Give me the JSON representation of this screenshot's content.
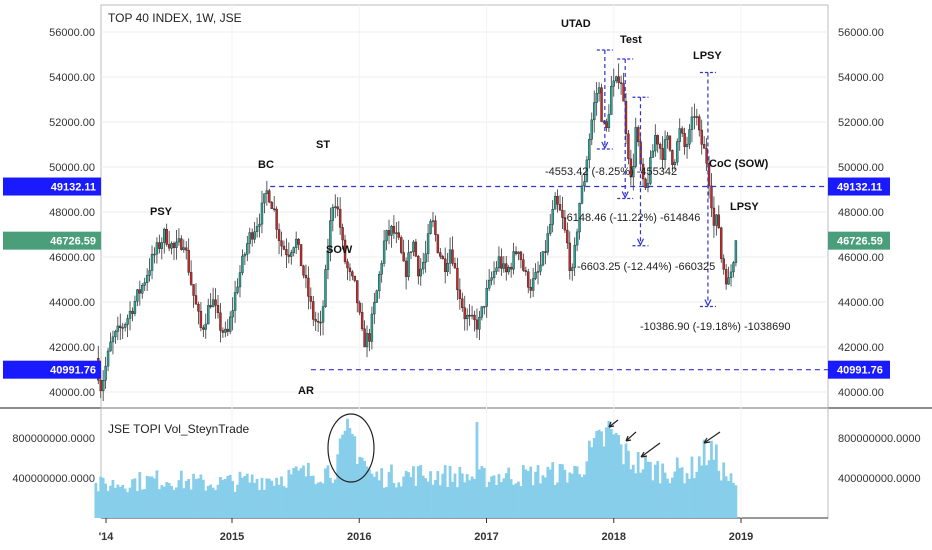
{
  "chart_data": [
    {
      "type": "candlestick",
      "title": "TOP 40 INDEX, 1W, JSE",
      "ylim": [
        39500,
        57200
      ],
      "y_ticks": [
        "56000.00",
        "54000.00",
        "52000.00",
        "50000.00",
        "48000.00",
        "46000.00",
        "44000.00",
        "42000.00",
        "40000.00"
      ],
      "x_ticks": [
        "'14",
        "2015",
        "2016",
        "2017",
        "2018",
        "2019"
      ],
      "colors": {
        "up": "#26a69a",
        "down": "#c62828",
        "level_line": "#3333cc",
        "blue_tag": "#1a1aff",
        "green_tag": "#4b9e7a"
      },
      "level_lines": [
        {
          "value": 49132.11,
          "label": "49132.11"
        },
        {
          "value": 40991.76,
          "label": "40991.76"
        }
      ],
      "last_price": {
        "value": 46726.59,
        "label": "46726.59"
      },
      "annotations": [
        "PSY",
        "BC",
        "ST",
        "SOW",
        "AR",
        "UTAD",
        "Test",
        "LPSY",
        "CoC (SOW)",
        "LPSY"
      ],
      "measurements": [
        "-4553.42 (-8.25%) -455342",
        "-6148.46 (-11.22%) -614846",
        "-6603.25 (-12.44%) -660325",
        "-10386.90 (-19.18%) -1038690"
      ],
      "price_path": [
        {
          "t": 2013.93,
          "v": 41500
        },
        {
          "t": 2013.97,
          "v": 40200
        },
        {
          "t": 2014.05,
          "v": 42200
        },
        {
          "t": 2014.17,
          "v": 43200
        },
        {
          "t": 2014.3,
          "v": 44800
        },
        {
          "t": 2014.38,
          "v": 46000
        },
        {
          "t": 2014.47,
          "v": 47000
        },
        {
          "t": 2014.55,
          "v": 46300
        },
        {
          "t": 2014.62,
          "v": 46800
        },
        {
          "t": 2014.69,
          "v": 44500
        },
        {
          "t": 2014.76,
          "v": 42700
        },
        {
          "t": 2014.84,
          "v": 44200
        },
        {
          "t": 2014.9,
          "v": 43000
        },
        {
          "t": 2014.96,
          "v": 42400
        },
        {
          "t": 2015.04,
          "v": 44800
        },
        {
          "t": 2015.13,
          "v": 46800
        },
        {
          "t": 2015.22,
          "v": 47800
        },
        {
          "t": 2015.28,
          "v": 49000
        },
        {
          "t": 2015.33,
          "v": 48100
        },
        {
          "t": 2015.38,
          "v": 46600
        },
        {
          "t": 2015.44,
          "v": 46200
        },
        {
          "t": 2015.5,
          "v": 46800
        },
        {
          "t": 2015.58,
          "v": 44800
        },
        {
          "t": 2015.64,
          "v": 43300
        },
        {
          "t": 2015.7,
          "v": 42800
        },
        {
          "t": 2015.76,
          "v": 46800
        },
        {
          "t": 2015.8,
          "v": 48800
        },
        {
          "t": 2015.84,
          "v": 47800
        },
        {
          "t": 2015.88,
          "v": 46000
        },
        {
          "t": 2015.92,
          "v": 45200
        },
        {
          "t": 2015.97,
          "v": 44600
        },
        {
          "t": 2016.03,
          "v": 42200
        },
        {
          "t": 2016.08,
          "v": 42500
        },
        {
          "t": 2016.14,
          "v": 44500
        },
        {
          "t": 2016.2,
          "v": 46800
        },
        {
          "t": 2016.26,
          "v": 47200
        },
        {
          "t": 2016.31,
          "v": 46600
        },
        {
          "t": 2016.36,
          "v": 45200
        },
        {
          "t": 2016.42,
          "v": 46800
        },
        {
          "t": 2016.47,
          "v": 45300
        },
        {
          "t": 2016.52,
          "v": 46000
        },
        {
          "t": 2016.57,
          "v": 47700
        },
        {
          "t": 2016.62,
          "v": 46400
        },
        {
          "t": 2016.67,
          "v": 45600
        },
        {
          "t": 2016.72,
          "v": 46500
        },
        {
          "t": 2016.77,
          "v": 44800
        },
        {
          "t": 2016.83,
          "v": 43400
        },
        {
          "t": 2016.88,
          "v": 43100
        },
        {
          "t": 2016.94,
          "v": 43000
        },
        {
          "t": 2016.99,
          "v": 44200
        },
        {
          "t": 2017.05,
          "v": 45200
        },
        {
          "t": 2017.1,
          "v": 45900
        },
        {
          "t": 2017.15,
          "v": 45200
        },
        {
          "t": 2017.2,
          "v": 45800
        },
        {
          "t": 2017.25,
          "v": 46500
        },
        {
          "t": 2017.3,
          "v": 45200
        },
        {
          "t": 2017.35,
          "v": 44700
        },
        {
          "t": 2017.4,
          "v": 45200
        },
        {
          "t": 2017.45,
          "v": 46000
        },
        {
          "t": 2017.5,
          "v": 47400
        },
        {
          "t": 2017.54,
          "v": 48400
        },
        {
          "t": 2017.59,
          "v": 47800
        },
        {
          "t": 2017.64,
          "v": 46400
        },
        {
          "t": 2017.67,
          "v": 45000
        },
        {
          "t": 2017.7,
          "v": 46600
        },
        {
          "t": 2017.73,
          "v": 48400
        },
        {
          "t": 2017.77,
          "v": 49500
        },
        {
          "t": 2017.8,
          "v": 51000
        },
        {
          "t": 2017.84,
          "v": 52600
        },
        {
          "t": 2017.88,
          "v": 53700
        },
        {
          "t": 2017.91,
          "v": 52000
        },
        {
          "t": 2017.94,
          "v": 51500
        },
        {
          "t": 2017.98,
          "v": 53500
        },
        {
          "t": 2018.02,
          "v": 53700
        },
        {
          "t": 2018.05,
          "v": 54300
        },
        {
          "t": 2018.08,
          "v": 52600
        },
        {
          "t": 2018.11,
          "v": 51000
        },
        {
          "t": 2018.14,
          "v": 49000
        },
        {
          "t": 2018.17,
          "v": 51800
        },
        {
          "t": 2018.2,
          "v": 50500
        },
        {
          "t": 2018.24,
          "v": 48700
        },
        {
          "t": 2018.28,
          "v": 49800
        },
        {
          "t": 2018.33,
          "v": 51500
        },
        {
          "t": 2018.38,
          "v": 50600
        },
        {
          "t": 2018.42,
          "v": 51200
        },
        {
          "t": 2018.47,
          "v": 50200
        },
        {
          "t": 2018.52,
          "v": 51600
        },
        {
          "t": 2018.56,
          "v": 50800
        },
        {
          "t": 2018.6,
          "v": 51500
        },
        {
          "t": 2018.64,
          "v": 52600
        },
        {
          "t": 2018.67,
          "v": 51400
        },
        {
          "t": 2018.7,
          "v": 50900
        },
        {
          "t": 2018.73,
          "v": 50300
        },
        {
          "t": 2018.76,
          "v": 49000
        },
        {
          "t": 2018.79,
          "v": 47200
        },
        {
          "t": 2018.82,
          "v": 47900
        },
        {
          "t": 2018.84,
          "v": 46100
        },
        {
          "t": 2018.87,
          "v": 45400
        },
        {
          "t": 2018.9,
          "v": 44800
        },
        {
          "t": 2018.93,
          "v": 45600
        },
        {
          "t": 2018.96,
          "v": 46726.59
        }
      ]
    },
    {
      "type": "bar",
      "title": "JSE TOPI Vol_SteynTrade",
      "y_ticks_left": [
        "800000000.0000",
        "400000000.0000"
      ],
      "y_ticks_right": [
        "800000000.0000",
        "400000000.0000"
      ],
      "ylim": [
        0,
        1000000000
      ],
      "color": "#87ceeb",
      "volume_path": [
        {
          "t": 2013.93,
          "v": 330000000
        },
        {
          "t": 2014.2,
          "v": 370000000
        },
        {
          "t": 2014.5,
          "v": 400000000
        },
        {
          "t": 2014.8,
          "v": 350000000
        },
        {
          "t": 2015.1,
          "v": 380000000
        },
        {
          "t": 2015.4,
          "v": 420000000
        },
        {
          "t": 2015.6,
          "v": 460000000
        },
        {
          "t": 2015.8,
          "v": 500000000
        },
        {
          "t": 2015.93,
          "v": 880000000
        },
        {
          "t": 2016.1,
          "v": 420000000
        },
        {
          "t": 2016.5,
          "v": 450000000
        },
        {
          "t": 2016.9,
          "v": 420000000
        },
        {
          "t": 2017.3,
          "v": 440000000
        },
        {
          "t": 2017.7,
          "v": 470000000
        },
        {
          "t": 2017.98,
          "v": 900000000
        },
        {
          "t": 2018.1,
          "v": 620000000
        },
        {
          "t": 2018.3,
          "v": 500000000
        },
        {
          "t": 2018.6,
          "v": 480000000
        },
        {
          "t": 2018.75,
          "v": 700000000
        },
        {
          "t": 2018.96,
          "v": 300000000
        }
      ]
    }
  ]
}
